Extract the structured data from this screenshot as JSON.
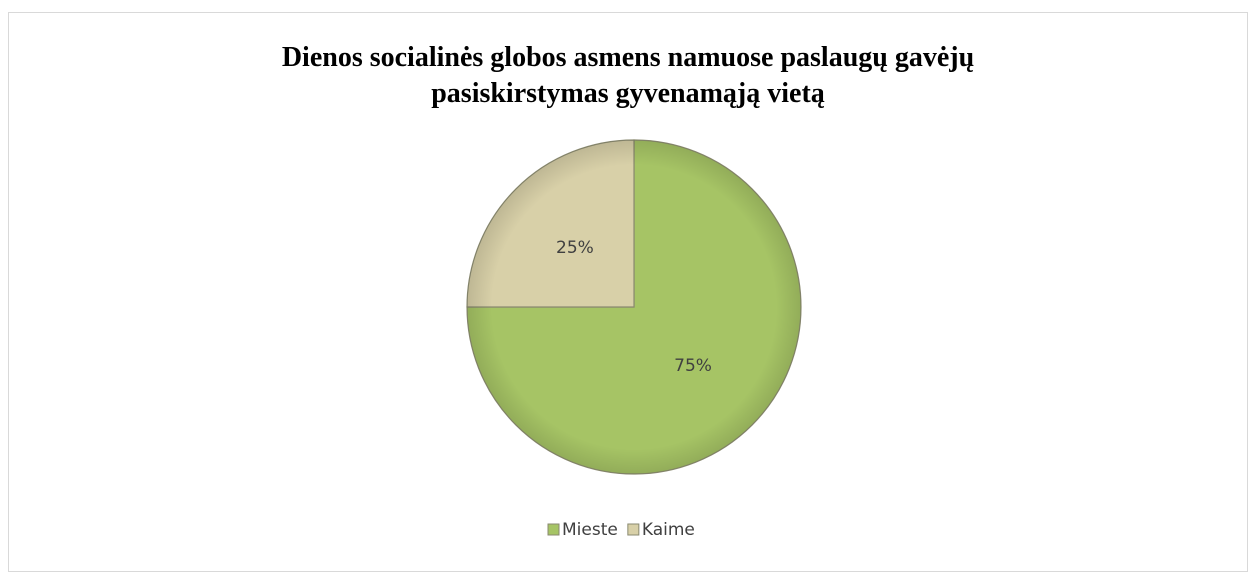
{
  "chart_data": {
    "type": "pie",
    "title": "Dienos socialinės globos asmens namuose paslaugų gavėjų pasiskirstymas gyvenamąją vietą",
    "categories": [
      "Mieste",
      "Kaime"
    ],
    "values": [
      75,
      25
    ],
    "value_labels": [
      "75%",
      "25%"
    ],
    "colors": [
      "#a6c465",
      "#d8d0a8"
    ],
    "legend": "bottom"
  }
}
